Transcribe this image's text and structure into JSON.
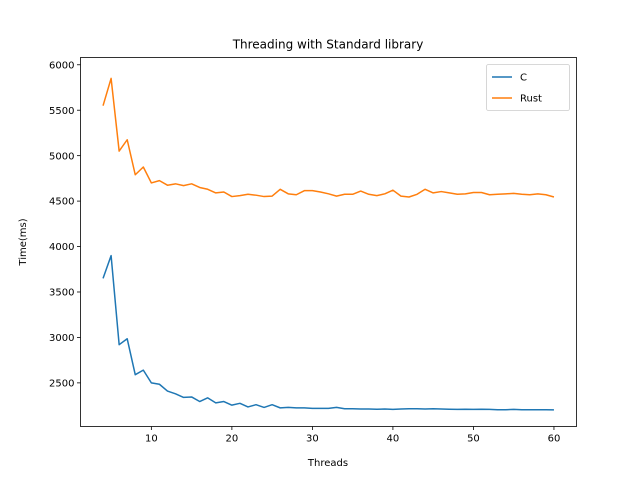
{
  "chart_data": {
    "type": "line",
    "title": "Threading with Standard library",
    "xlabel": "Threads",
    "ylabel": "Time(ms)",
    "xlim": [
      1.2,
      62.8
    ],
    "ylim": [
      2020,
      6080
    ],
    "x_ticks": [
      10,
      20,
      30,
      40,
      50,
      60
    ],
    "y_ticks": [
      2500,
      3000,
      3500,
      4000,
      4500,
      5000,
      5500,
      6000
    ],
    "legend_position": "top-right",
    "grid": false,
    "x": [
      4,
      5,
      6,
      7,
      8,
      9,
      10,
      11,
      12,
      13,
      14,
      15,
      16,
      17,
      18,
      19,
      20,
      21,
      22,
      23,
      24,
      25,
      26,
      27,
      28,
      29,
      30,
      31,
      32,
      33,
      34,
      35,
      36,
      37,
      38,
      39,
      40,
      41,
      42,
      43,
      44,
      45,
      46,
      47,
      48,
      49,
      50,
      51,
      52,
      53,
      54,
      55,
      56,
      57,
      58,
      59,
      60
    ],
    "series": [
      {
        "name": "C",
        "color": "#1f77b4",
        "values": [
          3650,
          3900,
          2920,
          2985,
          2590,
          2640,
          2500,
          2485,
          2410,
          2380,
          2340,
          2345,
          2295,
          2335,
          2280,
          2295,
          2255,
          2275,
          2235,
          2260,
          2230,
          2260,
          2225,
          2230,
          2225,
          2225,
          2220,
          2220,
          2220,
          2230,
          2215,
          2215,
          2212,
          2212,
          2210,
          2212,
          2208,
          2212,
          2215,
          2215,
          2212,
          2215,
          2212,
          2210,
          2208,
          2210,
          2208,
          2210,
          2208,
          2205,
          2205,
          2208,
          2205,
          2205,
          2205,
          2205,
          2203
        ]
      },
      {
        "name": "Rust",
        "color": "#ff7f0e",
        "values": [
          5550,
          5850,
          5050,
          5175,
          4790,
          4875,
          4700,
          4725,
          4675,
          4690,
          4670,
          4690,
          4650,
          4630,
          4590,
          4600,
          4550,
          4560,
          4575,
          4565,
          4550,
          4555,
          4630,
          4580,
          4570,
          4615,
          4615,
          4600,
          4580,
          4555,
          4575,
          4575,
          4610,
          4575,
          4560,
          4580,
          4620,
          4555,
          4545,
          4575,
          4630,
          4590,
          4605,
          4590,
          4575,
          4580,
          4595,
          4595,
          4570,
          4575,
          4580,
          4585,
          4575,
          4570,
          4580,
          4570,
          4545
        ]
      }
    ]
  }
}
